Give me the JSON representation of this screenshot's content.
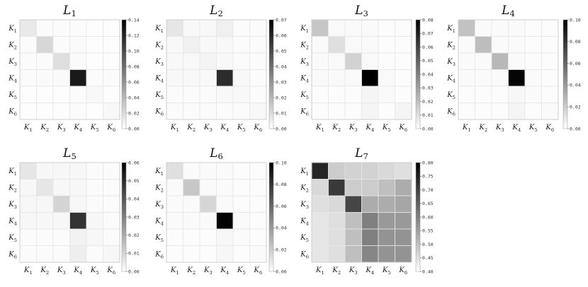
{
  "figure": {
    "colors": {
      "grid_line": "#e6e6e6",
      "frame": "#cccccc",
      "low": "#ffffff",
      "high": "#000000"
    }
  },
  "chart_data": [
    {
      "type": "heatmap",
      "title": "L1",
      "x_labels": [
        "K1",
        "K2",
        "K3",
        "K4",
        "K5",
        "K6"
      ],
      "y_labels": [
        "K1",
        "K2",
        "K3",
        "K4",
        "K5",
        "K6"
      ],
      "colorbar": {
        "min": 0,
        "max": 0.14,
        "ticks": [
          "0.00",
          "0.02",
          "0.04",
          "0.06",
          "0.08",
          "0.10",
          "0.12",
          "0.14"
        ]
      },
      "values": [
        [
          0.012,
          0.002,
          0.002,
          0.002,
          0.001,
          0.001
        ],
        [
          0.002,
          0.022,
          0.002,
          0.003,
          0.001,
          0.001
        ],
        [
          0.002,
          0.002,
          0.018,
          0.003,
          0.001,
          0.001
        ],
        [
          0.002,
          0.003,
          0.003,
          0.126,
          0.002,
          0.002
        ],
        [
          0.001,
          0.001,
          0.001,
          0.002,
          0.004,
          0.001
        ],
        [
          0.001,
          0.001,
          0.001,
          0.002,
          0.001,
          0.004
        ]
      ]
    },
    {
      "type": "heatmap",
      "title": "L2",
      "x_labels": [
        "K1",
        "K2",
        "K3",
        "K4",
        "K5",
        "K6"
      ],
      "y_labels": [
        "K1",
        "K2",
        "K3",
        "K4",
        "K5",
        "K6"
      ],
      "colorbar": {
        "min": 0,
        "max": 0.07,
        "ticks": [
          "0.00",
          "0.01",
          "0.02",
          "0.03",
          "0.04",
          "0.05",
          "0.06",
          "0.07"
        ]
      },
      "values": [
        [
          0.007,
          0.002,
          0.002,
          0.004,
          0.001,
          0.001
        ],
        [
          0.002,
          0.004,
          0.002,
          0.002,
          0.001,
          0.001
        ],
        [
          0.002,
          0.002,
          0.003,
          0.002,
          0.001,
          0.001
        ],
        [
          0.002,
          0.002,
          0.002,
          0.058,
          0.002,
          0.001
        ],
        [
          0.001,
          0.001,
          0.001,
          0.002,
          0.002,
          0.001
        ],
        [
          0.001,
          0.001,
          0.001,
          0.001,
          0.001,
          0.002
        ]
      ]
    },
    {
      "type": "heatmap",
      "title": "L3",
      "x_labels": [
        "K1",
        "K2",
        "K3",
        "K4",
        "K5",
        "K6"
      ],
      "y_labels": [
        "K1",
        "K2",
        "K3",
        "K4",
        "K5",
        "K6"
      ],
      "colorbar": {
        "min": 0,
        "max": 0.08,
        "ticks": [
          "0.00",
          "0.01",
          "0.02",
          "0.03",
          "0.04",
          "0.05",
          "0.06",
          "0.07",
          "0.08"
        ]
      },
      "values": [
        [
          0.018,
          0.002,
          0.002,
          0.002,
          0.001,
          0.001
        ],
        [
          0.002,
          0.01,
          0.002,
          0.002,
          0.001,
          0.001
        ],
        [
          0.002,
          0.002,
          0.014,
          0.002,
          0.001,
          0.001
        ],
        [
          0.002,
          0.002,
          0.002,
          0.08,
          0.002,
          0.001
        ],
        [
          0.001,
          0.001,
          0.001,
          0.003,
          0.002,
          0.001
        ],
        [
          0.001,
          0.001,
          0.001,
          0.003,
          0.001,
          0.003
        ]
      ]
    },
    {
      "type": "heatmap",
      "title": "L4",
      "x_labels": [
        "K1",
        "K2",
        "K3",
        "K4",
        "K5",
        "K6"
      ],
      "y_labels": [
        "K1",
        "K2",
        "K3",
        "K4",
        "K5",
        "K6"
      ],
      "colorbar": {
        "min": 0,
        "max": 0.1,
        "ticks": [
          "0.00",
          "0.02",
          "0.04",
          "0.06",
          "0.08",
          "0.10"
        ]
      },
      "values": [
        [
          0.024,
          0.002,
          0.002,
          0.002,
          0.001,
          0.001
        ],
        [
          0.002,
          0.026,
          0.002,
          0.002,
          0.001,
          0.001
        ],
        [
          0.002,
          0.002,
          0.028,
          0.002,
          0.001,
          0.001
        ],
        [
          0.002,
          0.002,
          0.002,
          0.098,
          0.002,
          0.001
        ],
        [
          0.001,
          0.001,
          0.001,
          0.003,
          0.002,
          0.001
        ],
        [
          0.001,
          0.001,
          0.001,
          0.004,
          0.001,
          0.002
        ]
      ]
    },
    {
      "type": "heatmap",
      "title": "L5",
      "x_labels": [
        "K1",
        "K2",
        "K3",
        "K4",
        "K5",
        "K6"
      ],
      "y_labels": [
        "K1",
        "K2",
        "K3",
        "K4",
        "K5",
        "K6"
      ],
      "colorbar": {
        "min": 0,
        "max": 0.06,
        "ticks": [
          "0.00",
          "0.01",
          "0.02",
          "0.03",
          "0.04",
          "0.05",
          "0.06"
        ]
      },
      "values": [
        [
          0.006,
          0.002,
          0.002,
          0.002,
          0.001,
          0.001
        ],
        [
          0.002,
          0.006,
          0.002,
          0.002,
          0.001,
          0.001
        ],
        [
          0.002,
          0.002,
          0.01,
          0.002,
          0.001,
          0.001
        ],
        [
          0.002,
          0.002,
          0.002,
          0.048,
          0.002,
          0.001
        ],
        [
          0.001,
          0.001,
          0.001,
          0.003,
          0.002,
          0.001
        ],
        [
          0.001,
          0.001,
          0.001,
          0.004,
          0.001,
          0.002
        ]
      ]
    },
    {
      "type": "heatmap",
      "title": "L6",
      "x_labels": [
        "K1",
        "K2",
        "K3",
        "K4",
        "K5",
        "K6"
      ],
      "y_labels": [
        "K1",
        "K2",
        "K3",
        "K4",
        "K5",
        "K6"
      ],
      "colorbar": {
        "min": 0,
        "max": 0.1,
        "ticks": [
          "0.00",
          "0.02",
          "0.04",
          "0.06",
          "0.08",
          "0.10"
        ]
      },
      "values": [
        [
          0.012,
          0.002,
          0.002,
          0.002,
          0.001,
          0.001
        ],
        [
          0.002,
          0.022,
          0.002,
          0.002,
          0.001,
          0.001
        ],
        [
          0.002,
          0.002,
          0.016,
          0.002,
          0.001,
          0.001
        ],
        [
          0.002,
          0.002,
          0.002,
          0.099,
          0.002,
          0.001
        ],
        [
          0.001,
          0.001,
          0.001,
          0.003,
          0.002,
          0.001
        ],
        [
          0.001,
          0.001,
          0.001,
          0.003,
          0.001,
          0.002
        ]
      ]
    },
    {
      "type": "heatmap",
      "title": "L7",
      "x_labels": [
        "K1",
        "K2",
        "K3",
        "K4",
        "K5",
        "K6"
      ],
      "y_labels": [
        "K1",
        "K2",
        "K3",
        "K4",
        "K5",
        "K6"
      ],
      "colorbar": {
        "min": 0.4,
        "max": 0.8,
        "ticks": [
          "0.40",
          "0.45",
          "0.50",
          "0.55",
          "0.60",
          "0.65",
          "0.70",
          "0.75",
          "0.80"
        ]
      },
      "values": [
        [
          0.74,
          0.48,
          0.47,
          0.47,
          0.46,
          0.45
        ],
        [
          0.46,
          0.71,
          0.48,
          0.48,
          0.5,
          0.53
        ],
        [
          0.45,
          0.46,
          0.69,
          0.53,
          0.53,
          0.54
        ],
        [
          0.44,
          0.45,
          0.5,
          0.6,
          0.56,
          0.56
        ],
        [
          0.44,
          0.45,
          0.5,
          0.6,
          0.57,
          0.57
        ],
        [
          0.44,
          0.45,
          0.5,
          0.59,
          0.57,
          0.57
        ]
      ]
    }
  ]
}
